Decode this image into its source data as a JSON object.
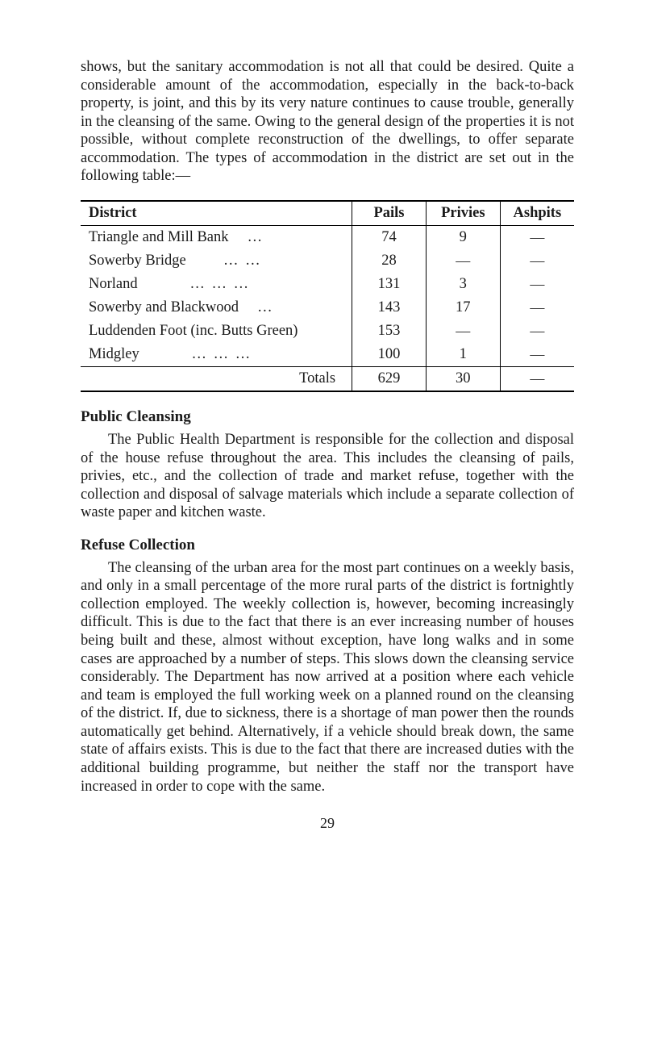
{
  "para1": "shows, but the sanitary accommodation is not all that could be desired. Quite a considerable amount of the accommodation, especially in the back-to-back property, is joint, and this by its very nature continues to cause trouble, generally in the cleansing of the same. Owing to the general design of the properties it is not possible, without complete reconstruction of the dwellings, to offer separate accommodation. The types of accommodation in the district are set out in the following table:—",
  "table": {
    "headers": {
      "district": "District",
      "pails": "Pails",
      "privies": "Privies",
      "ashpits": "Ashpits"
    },
    "rows": [
      {
        "district": "Triangle and Mill Bank",
        "dots": "…",
        "pails": "74",
        "privies": "9",
        "ashpits": "—"
      },
      {
        "district": "Sowerby Bridge",
        "dots": "…   …",
        "pails": "28",
        "privies": "—",
        "ashpits": "—"
      },
      {
        "district": "Norland",
        "dots": "…   …   …",
        "pails": "131",
        "privies": "3",
        "ashpits": "—"
      },
      {
        "district": "Sowerby and Blackwood",
        "dots": "…",
        "pails": "143",
        "privies": "17",
        "ashpits": "—"
      },
      {
        "district": "Luddenden Foot (inc. Butts Green)",
        "dots": "",
        "pails": "153",
        "privies": "—",
        "ashpits": "—"
      },
      {
        "district": "Midgley",
        "dots": "…   …   …",
        "pails": "100",
        "privies": "1",
        "ashpits": "—"
      }
    ],
    "totals": {
      "label": "Totals",
      "pails": "629",
      "privies": "30",
      "ashpits": "—"
    }
  },
  "heading1": "Public Cleansing",
  "para2": "The Public Health Department is responsible for the collection and disposal of the house refuse throughout the area. This includes the cleansing of pails, privies, etc., and the collection of trade and market refuse, together with the collection and disposal of salvage materials which include a separate collection of waste paper and kitchen waste.",
  "heading2": "Refuse Collection",
  "para3": "The cleansing of the urban area for the most part continues on a weekly basis, and only in a small percentage of the more rural parts of the district is fortnightly collection employed. The weekly collection is, however, becoming increasingly difficult. This is due to the fact that there is an ever increasing number of houses being built and these, almost without exception, have long walks and in some cases are approached by a number of steps. This slows down the cleansing service considerably. The Department has now arrived at a position where each vehicle and team is employed the full working week on a planned round on the cleansing of the district. If, due to sickness, there is a shortage of man power then the rounds automatically get behind. Alternatively, if a vehicle should break down, the same state of affairs exists. This is due to the fact that there are increased duties with the additional building programme, but neither the staff nor the transport have increased in order to cope with the same.",
  "pageNumber": "29"
}
